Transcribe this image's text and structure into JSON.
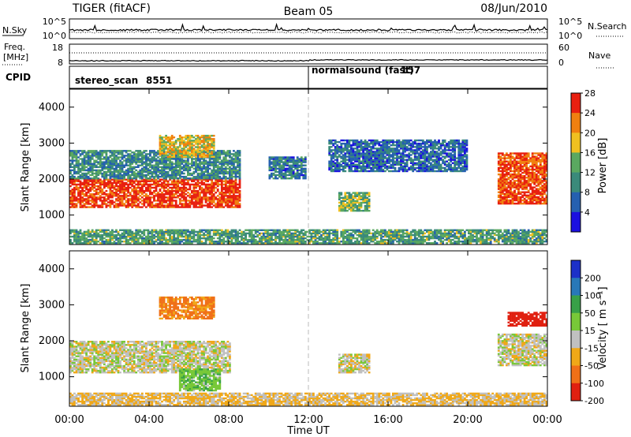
{
  "header": {
    "radar": "TIGER (fitACF)",
    "beam": "Beam 05",
    "date": "08/Jun/2010"
  },
  "nsky_panel": {
    "left_label": "N.Sky",
    "right_label": "N.Search",
    "left_ticks": [
      "10^5",
      "10^0"
    ],
    "right_ticks": [
      "10^5",
      "10^0"
    ]
  },
  "freq_panel": {
    "left_label_1": "Freq.",
    "left_label_2": "[MHz]",
    "right_label": "Nave",
    "left_ticks": [
      "18",
      "8"
    ],
    "right_ticks": [
      "60",
      "0"
    ]
  },
  "cpid_panel": {
    "label": "CPID",
    "programs": [
      {
        "name": "stereo_scan",
        "id": "8551"
      },
      {
        "name": "normalsound (fast)",
        "id": "157"
      }
    ]
  },
  "power_panel": {
    "ylabel": "Slant Range [km]",
    "yticks": [
      "1000",
      "2000",
      "3000",
      "4000"
    ],
    "colorbar_label": "Power [dB]",
    "colorbar_ticks": [
      "4",
      "8",
      "12",
      "16",
      "20",
      "24",
      "28"
    ],
    "colors": [
      "#1b10e0",
      "#2560b0",
      "#3a8a7a",
      "#5aa860",
      "#f0c020",
      "#f08010",
      "#e82010"
    ]
  },
  "velocity_panel": {
    "ylabel": "Slant Range [km]",
    "yticks": [
      "1000",
      "2000",
      "3000",
      "4000"
    ],
    "colorbar_label": "Velocity [ m s⁻¹]",
    "colorbar_ticks": [
      "200",
      "100",
      "50",
      "15",
      "-15",
      "-50",
      "-100",
      "-200"
    ],
    "colors": [
      "#1c30c8",
      "#2878b8",
      "#38a048",
      "#78c838",
      "#c0c0c0",
      "#f0a818",
      "#f07018",
      "#e02010"
    ]
  },
  "x_axis": {
    "label": "Time UT",
    "ticks": [
      "00:00",
      "04:00",
      "08:00",
      "12:00",
      "16:00",
      "20:00",
      "00:00"
    ]
  },
  "chart_data": {
    "type": "heatmap",
    "x_range_hours": [
      0,
      24
    ],
    "y_range_km": [
      180,
      4500
    ],
    "mode_change_hour": 12,
    "power_regions": [
      {
        "start": 0.0,
        "end": 8.5,
        "range_km": [
          1200,
          2000
        ],
        "power_db": 26
      },
      {
        "start": 0.0,
        "end": 8.5,
        "range_km": [
          2000,
          2800
        ],
        "power_db": 10
      },
      {
        "start": 4.5,
        "end": 7.2,
        "range_km": [
          2600,
          3200
        ],
        "power_db": 18
      },
      {
        "start": 10.0,
        "end": 11.8,
        "range_km": [
          2000,
          2600
        ],
        "power_db": 8
      },
      {
        "start": 13.5,
        "end": 15.0,
        "range_km": [
          1100,
          1600
        ],
        "power_db": 14
      },
      {
        "start": 13.0,
        "end": 20.0,
        "range_km": [
          2200,
          3100
        ],
        "power_db": 7
      },
      {
        "start": 21.5,
        "end": 24.0,
        "range_km": [
          1300,
          2700
        ],
        "power_db": 25
      },
      {
        "start": 0.0,
        "end": 24.0,
        "range_km": [
          200,
          600
        ],
        "power_db": 12
      }
    ],
    "velocity_regions": [
      {
        "start": 0.0,
        "end": 8.0,
        "range_km": [
          1100,
          2000
        ],
        "velocity": 0
      },
      {
        "start": 5.5,
        "end": 7.5,
        "range_km": [
          600,
          1200
        ],
        "velocity": 40
      },
      {
        "start": 4.5,
        "end": 7.2,
        "range_km": [
          2600,
          3200
        ],
        "velocity": -60
      },
      {
        "start": 13.5,
        "end": 15.0,
        "range_km": [
          1100,
          1600
        ],
        "velocity": 0
      },
      {
        "start": 21.5,
        "end": 24.0,
        "range_km": [
          1300,
          2200
        ],
        "velocity": 0
      },
      {
        "start": 22.0,
        "end": 24.0,
        "range_km": [
          2400,
          2800
        ],
        "velocity": -150
      },
      {
        "start": 0.0,
        "end": 24.0,
        "range_km": [
          200,
          550
        ],
        "velocity": -20
      }
    ]
  }
}
